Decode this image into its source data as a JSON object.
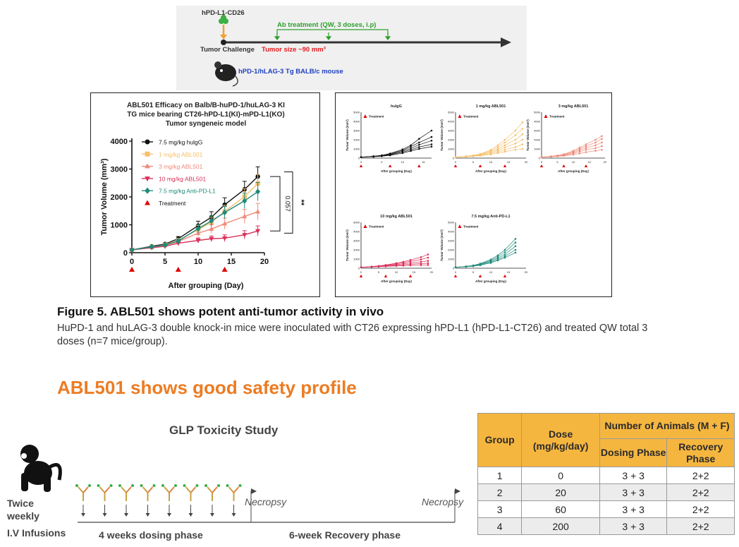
{
  "schematic": {
    "cell_label": "hPD-L1-CD26",
    "treatment_label": "Ab treatment (QW, 3 doses, i.p)",
    "challenge_label": "Tumor Challenge",
    "tumor_size_label": "Tumor size ~90 mm³",
    "mouse_label": "hPD-1/hLAG-3 Tg BALB/c mouse",
    "colors": {
      "treatment": "#2ca02c",
      "tumor": "#e31a1c",
      "mouse": "#1f3fbf"
    }
  },
  "chart_data": [
    {
      "type": "line",
      "title": "ABL501 Efficacy on Balb/B-huPD-1/huLAG-3 KI TG mice bearing CT26-hPD-L1(KI)-mPD-L1(KO) Tumor syngeneic model",
      "title_lines": [
        "ABL501 Efficacy on Balb/B-huPD-1/huLAG-3 KI",
        "TG mice bearing CT26-hPD-L1(KI)-mPD-L1(KO)",
        "Tumor syngeneic model"
      ],
      "xlabel": "After grouping (Day)",
      "ylabel": "Tumor Volume (mm³)",
      "xlim": [
        0,
        20
      ],
      "ylim": [
        0,
        4000
      ],
      "xticks": [
        0,
        5,
        10,
        15,
        20
      ],
      "yticks": [
        0,
        1000,
        2000,
        3000,
        4000
      ],
      "x": [
        0,
        3,
        5,
        7,
        10,
        12,
        14,
        17,
        19
      ],
      "series": [
        {
          "name": "7.5 mg/kg hulgG",
          "color": "#111111",
          "marker": "circle",
          "values": [
            100,
            230,
            310,
            500,
            970,
            1270,
            1720,
            2270,
            2730
          ],
          "errors": [
            20,
            40,
            50,
            80,
            160,
            200,
            250,
            290,
            350
          ]
        },
        {
          "name": "1 mg/kg ABL501",
          "color": "#f5c06e",
          "marker": "square",
          "values": [
            100,
            210,
            280,
            440,
            830,
            1090,
            1480,
            2010,
            2480
          ],
          "errors": [
            20,
            40,
            50,
            80,
            150,
            180,
            220,
            280,
            330
          ]
        },
        {
          "name": "3 mg/kg ABL501",
          "color": "#f08a7a",
          "marker": "triangle",
          "values": [
            100,
            200,
            260,
            400,
            700,
            850,
            1040,
            1300,
            1470
          ],
          "errors": [
            20,
            40,
            50,
            70,
            120,
            150,
            200,
            250,
            300
          ]
        },
        {
          "name": "10 mg/kg ABL501",
          "color": "#d9305a",
          "marker": "triangle-down",
          "values": [
            100,
            180,
            230,
            340,
            440,
            500,
            520,
            640,
            780
          ],
          "errors": [
            20,
            30,
            40,
            60,
            90,
            100,
            120,
            150,
            180
          ]
        },
        {
          "name": "7.5 mg/kg Anti-PD-L1",
          "color": "#1f8a7a",
          "marker": "diamond",
          "values": [
            100,
            210,
            270,
            420,
            860,
            1140,
            1440,
            1860,
            2190
          ],
          "errors": [
            20,
            40,
            50,
            80,
            150,
            180,
            220,
            280,
            330
          ]
        }
      ],
      "treatment_days": [
        0,
        7,
        14
      ],
      "treatment_label": "Treatment",
      "annotations": [
        "0.057",
        "**"
      ]
    },
    {
      "type": "line",
      "title": "hulgG",
      "xlabel": "After grouping (Day)",
      "ylabel": "Tumor Volume (mm³)",
      "legend": "Treatment",
      "xticks": [
        0,
        5,
        10,
        15
      ],
      "yticks": [
        0,
        1000,
        2000,
        3000,
        4000,
        5000
      ],
      "xlim": [
        0,
        17
      ],
      "ylim": [
        0,
        5000
      ],
      "color": "#111111",
      "x": [
        0,
        3,
        5,
        7,
        10,
        12,
        14,
        17
      ],
      "series": [
        {
          "values": [
            100,
            200,
            300,
            500,
            950,
            1400,
            2100,
            3000
          ]
        },
        {
          "values": [
            100,
            200,
            280,
            450,
            850,
            1250,
            1700,
            2300
          ]
        },
        {
          "values": [
            100,
            180,
            250,
            400,
            750,
            1050,
            1450,
            1900
          ]
        },
        {
          "values": [
            100,
            170,
            230,
            350,
            650,
            900,
            1200,
            1500
          ]
        },
        {
          "values": [
            100,
            150,
            210,
            300,
            550,
            780,
            1000,
            1250
          ]
        }
      ]
    },
    {
      "type": "line",
      "title": "1 mg/kg ABL501",
      "xlabel": "After grouping (Day)",
      "ylabel": "Tumor Volume (mm³)",
      "legend": "Treatment",
      "xticks": [
        0,
        5,
        10,
        15,
        20
      ],
      "yticks": [
        0,
        1000,
        2000,
        3000,
        4000,
        5000
      ],
      "xlim": [
        0,
        20
      ],
      "ylim": [
        0,
        5000
      ],
      "color": "#f5c06e",
      "x": [
        0,
        3,
        5,
        7,
        10,
        12,
        14,
        17,
        19
      ],
      "series": [
        {
          "values": [
            100,
            200,
            300,
            450,
            900,
            1400,
            2000,
            3000,
            3900
          ]
        },
        {
          "values": [
            100,
            200,
            280,
            420,
            800,
            1200,
            1700,
            2500,
            3200
          ]
        },
        {
          "values": [
            100,
            180,
            260,
            380,
            700,
            1000,
            1400,
            2000,
            2600
          ]
        },
        {
          "values": [
            100,
            170,
            240,
            340,
            600,
            850,
            1150,
            1600,
            2000
          ]
        },
        {
          "values": [
            100,
            160,
            220,
            300,
            500,
            700,
            900,
            1200,
            1500
          ]
        },
        {
          "values": [
            100,
            150,
            200,
            260,
            400,
            550,
            700,
            900,
            1000
          ]
        }
      ]
    },
    {
      "type": "line",
      "title": "3 mg/kg ABL501",
      "xlabel": "After grouping (Day)",
      "ylabel": "Tumor Volume (mm³)",
      "legend": "Treatment",
      "xticks": [
        0,
        5,
        10,
        15,
        20
      ],
      "yticks": [
        0,
        1000,
        2000,
        3000,
        4000,
        5000
      ],
      "xlim": [
        0,
        20
      ],
      "ylim": [
        0,
        5000
      ],
      "color": "#f08a7a",
      "x": [
        0,
        3,
        5,
        7,
        10,
        12,
        14,
        17,
        19
      ],
      "series": [
        {
          "values": [
            100,
            200,
            280,
            420,
            800,
            1150,
            1500,
            2000,
            2400
          ]
        },
        {
          "values": [
            100,
            190,
            260,
            380,
            700,
            1000,
            1300,
            1700,
            2100
          ]
        },
        {
          "values": [
            100,
            180,
            240,
            340,
            600,
            850,
            1100,
            1400,
            1700
          ]
        },
        {
          "values": [
            100,
            170,
            220,
            300,
            500,
            700,
            900,
            1100,
            1300
          ]
        },
        {
          "values": [
            100,
            150,
            200,
            250,
            380,
            500,
            650,
            800,
            900
          ]
        }
      ]
    },
    {
      "type": "line",
      "title": "10 mg/kg ABL501",
      "xlabel": "After grouping (Day)",
      "ylabel": "Tumor Volume (mm³)",
      "legend": "Treatment",
      "xticks": [
        0,
        5,
        10,
        15,
        20
      ],
      "yticks": [
        0,
        1000,
        2000,
        3000,
        4000,
        5000
      ],
      "xlim": [
        0,
        20
      ],
      "ylim": [
        0,
        5000
      ],
      "color": "#d9305a",
      "x": [
        0,
        3,
        5,
        7,
        10,
        12,
        14,
        17,
        19
      ],
      "series": [
        {
          "values": [
            100,
            180,
            250,
            350,
            550,
            700,
            900,
            1200,
            1500
          ]
        },
        {
          "values": [
            100,
            170,
            230,
            320,
            480,
            600,
            750,
            950,
            1150
          ]
        },
        {
          "values": [
            100,
            160,
            210,
            280,
            400,
            480,
            580,
            700,
            800
          ]
        },
        {
          "values": [
            100,
            150,
            190,
            240,
            320,
            380,
            440,
            500,
            550
          ]
        },
        {
          "values": [
            100,
            140,
            170,
            200,
            250,
            280,
            310,
            340,
            360
          ]
        }
      ]
    },
    {
      "type": "line",
      "title": "7.5 mg/kg Anti-PD-L1",
      "xlabel": "After grouping (Day)",
      "ylabel": "Tumor Volume (mm³)",
      "legend": "Treatment",
      "xticks": [
        0,
        5,
        10,
        15,
        20
      ],
      "yticks": [
        0,
        1000,
        2000,
        3000,
        4000,
        5000
      ],
      "xlim": [
        0,
        20
      ],
      "ylim": [
        0,
        5000
      ],
      "color": "#1f8a7a",
      "x": [
        0,
        3,
        5,
        7,
        10,
        12,
        14,
        17
      ],
      "series": [
        {
          "values": [
            100,
            200,
            300,
            500,
            950,
            1400,
            2000,
            3200
          ]
        },
        {
          "values": [
            100,
            190,
            280,
            450,
            850,
            1250,
            1750,
            2800
          ]
        },
        {
          "values": [
            100,
            180,
            260,
            400,
            750,
            1100,
            1500,
            2400
          ]
        },
        {
          "values": [
            100,
            170,
            240,
            360,
            650,
            950,
            1300,
            2000
          ]
        },
        {
          "values": [
            100,
            160,
            220,
            320,
            580,
            850,
            1150,
            1700
          ]
        }
      ]
    }
  ],
  "figure": {
    "title": "Figure 5. ABL501 shows potent anti-tumor activity in vivo",
    "caption": "HuPD-1 and huLAG-3 double knock-in mice were inoculated with CT26 expressing hPD-L1 (hPD-L1-CT26) and treated QW total 3 doses (n=7 mice/group)."
  },
  "safety": {
    "title": "ABL501 shows good safety profile",
    "glp_title": "GLP Toxicity Study",
    "twice_weekly": [
      "Twice",
      "weekly"
    ],
    "iv_label": "I.V Infusions",
    "dosing_phase": "4 weeks dosing phase",
    "recovery_phase": "6-week Recovery phase",
    "necropsy": "Necropsy",
    "colors": {
      "accent": "#ec7c23",
      "table_header": "#f5b63f"
    }
  },
  "table": {
    "headers": {
      "group": "Group",
      "dose": "Dose (mg/kg/day)",
      "animals": "Number of Animals (M + F)",
      "dosing": "Dosing Phase",
      "recovery": "Recovery Phase"
    },
    "rows": [
      {
        "group": "1",
        "dose": "0",
        "dosing": "3 + 3",
        "recovery": "2+2"
      },
      {
        "group": "2",
        "dose": "20",
        "dosing": "3 + 3",
        "recovery": "2+2"
      },
      {
        "group": "3",
        "dose": "60",
        "dosing": "3 + 3",
        "recovery": "2+2"
      },
      {
        "group": "4",
        "dose": "200",
        "dosing": "3 + 3",
        "recovery": "2+2"
      }
    ]
  }
}
